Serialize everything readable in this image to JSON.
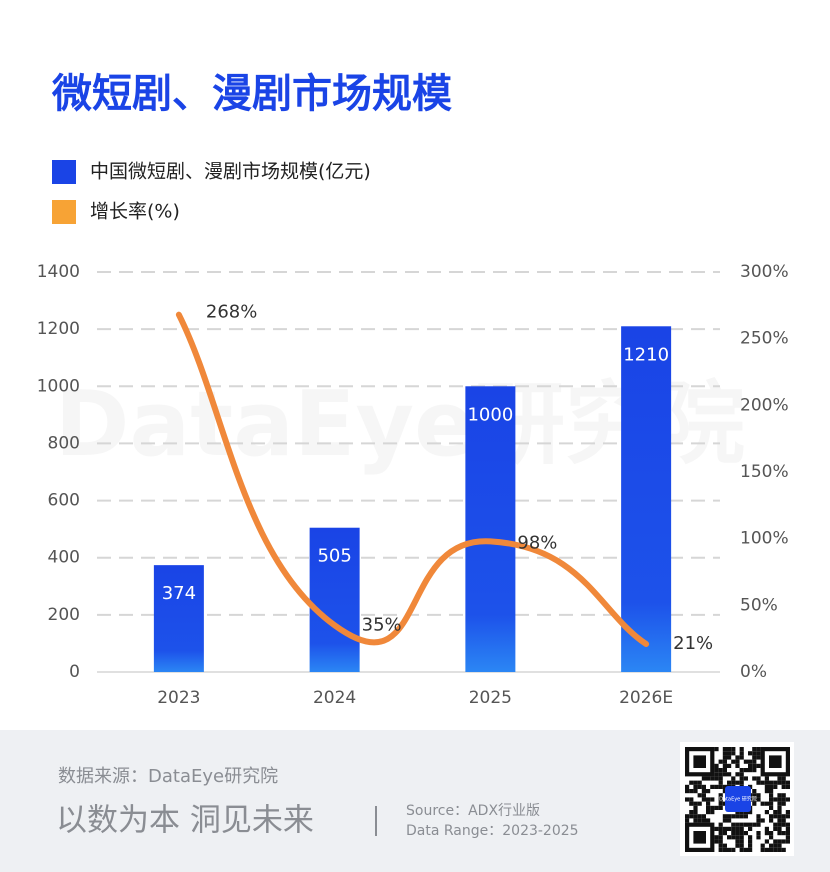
{
  "chart_data": {
    "type": "bar-line",
    "title": "微短剧、漫剧市场规模",
    "watermark": "DataEye研究院",
    "categories": [
      "2023",
      "2024",
      "2025",
      "2026E"
    ],
    "series": [
      {
        "name": "中国微短剧、漫剧市场规模(亿元)",
        "color": "#1a44e6",
        "type": "bar",
        "values": [
          374,
          505,
          1000,
          1210
        ]
      },
      {
        "name": "增长率(%)",
        "color": "#f0883a",
        "type": "line",
        "axis": "y2",
        "values": [
          268,
          35,
          98,
          21
        ],
        "value_labels": [
          "268%",
          "35%",
          "98%",
          "21%"
        ]
      }
    ],
    "ylim": [
      0,
      1400
    ],
    "yticks": [
      0,
      200,
      400,
      600,
      800,
      1000,
      1200,
      1400
    ],
    "y2lim": [
      0,
      300
    ],
    "y2ticks": [
      {
        "value": 0,
        "label": "0%"
      },
      {
        "value": 50,
        "label": "50%"
      },
      {
        "value": 100,
        "label": "100%"
      },
      {
        "value": 150,
        "label": "150%"
      },
      {
        "value": 200,
        "label": "200%"
      },
      {
        "value": 250,
        "label": "250%"
      },
      {
        "value": 300,
        "label": "300%"
      }
    ],
    "grid": true
  },
  "footer": {
    "source": "数据来源：DataEye研究院",
    "slogan": "以数为本 洞见未来",
    "source_note": "Source：ADX行业版",
    "data_range": "Data Range：2023-2025",
    "qr_badge": "DataEye 研究院"
  }
}
